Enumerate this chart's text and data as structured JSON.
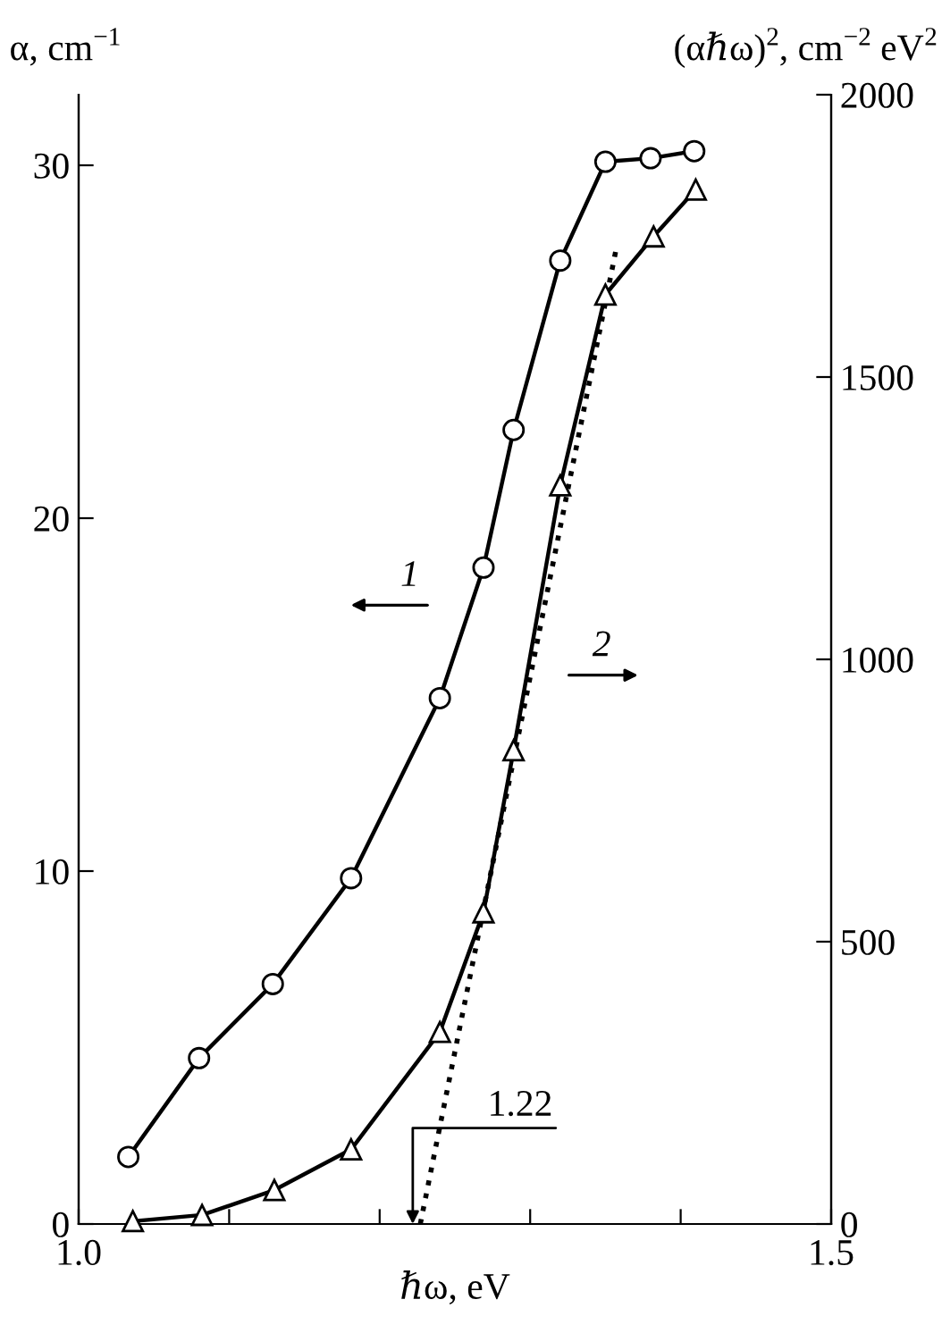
{
  "chart_data": {
    "type": "line",
    "xlabel": "ℏω, eV",
    "ylabel": "α, cm$^{−1}$",
    "y2label": "(αℏω)$^{2}$, cm$^{−2}$ eV$^{2}$",
    "xlim": [
      1.0,
      1.5
    ],
    "xticks": [
      {
        "value": 1.0,
        "label": "1.0"
      },
      {
        "value": 1.1,
        "label": null
      },
      {
        "value": 1.2,
        "label": null
      },
      {
        "value": 1.3,
        "label": null
      },
      {
        "value": 1.4,
        "label": null
      },
      {
        "value": 1.5,
        "label": "1.5"
      }
    ],
    "ylim": [
      0,
      32
    ],
    "yticks": [
      0,
      10,
      20,
      30
    ],
    "y2lim": [
      0,
      2000
    ],
    "y2ticks": [
      0,
      500,
      1000,
      1500,
      2000
    ],
    "grid": false,
    "legend": false,
    "series": [
      {
        "name": "1",
        "color": "#000000",
        "marker": "circle",
        "line_style": "solid",
        "x": [
          1.033,
          1.08,
          1.129,
          1.181,
          1.24,
          1.269,
          1.289,
          1.32,
          1.35,
          1.38,
          1.409
        ],
        "values": [
          1.9,
          4.7,
          6.8,
          9.8,
          14.9,
          18.6,
          22.5,
          27.3,
          30.1,
          30.2,
          30.4
        ]
      },
      {
        "name": "2",
        "color": "#000000",
        "marker": "triangle",
        "line_style": "solid",
        "axis": "y2",
        "x": [
          1.036,
          1.082,
          1.13,
          1.181,
          1.24,
          1.269,
          1.289,
          1.32,
          1.35,
          1.382,
          1.41
        ],
        "values": [
          5,
          16,
          60,
          132,
          340,
          552,
          839,
          1308,
          1646,
          1749,
          1832
        ]
      },
      {
        "type": "line",
        "color": "#000000",
        "marker": "none",
        "line_style": "dotted",
        "axis": "y2",
        "x": [
          1.227,
          1.357
        ],
        "values": [
          0,
          1725
        ]
      }
    ],
    "annotations": [
      "1.22"
    ]
  }
}
